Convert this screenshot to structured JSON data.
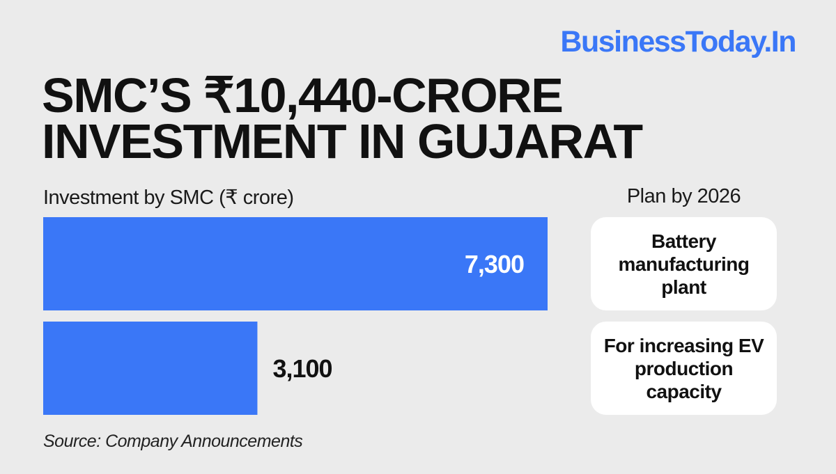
{
  "brand": "BusinessToday.In",
  "title_lines": [
    "SMC’s ₹10,440-crore",
    "investment in Gujarat"
  ],
  "chart_label": "Investment by SMC (₹ crore)",
  "plan_label": "Plan by 2026",
  "source": "Source: Company Announcements",
  "colors": {
    "background": "#ebebeb",
    "bar": "#3a77f7",
    "brand": "#3a77f7",
    "value_inside": "#ffffff",
    "value_outside": "#111111",
    "card": "#ffffff"
  },
  "chart_data": {
    "type": "bar",
    "orientation": "horizontal",
    "title": "Investment by SMC (₹ crore)",
    "categories": [
      "Battery manufacturing plant",
      "For increasing EV production capacity"
    ],
    "values": [
      7300,
      3100
    ],
    "value_labels": [
      "7,300",
      "3,100"
    ],
    "xlim": [
      0,
      7300
    ],
    "grid": false,
    "legend": "none"
  },
  "plans": [
    {
      "label": "Battery manufacturing plant"
    },
    {
      "label": "For increasing EV production capacity"
    }
  ]
}
